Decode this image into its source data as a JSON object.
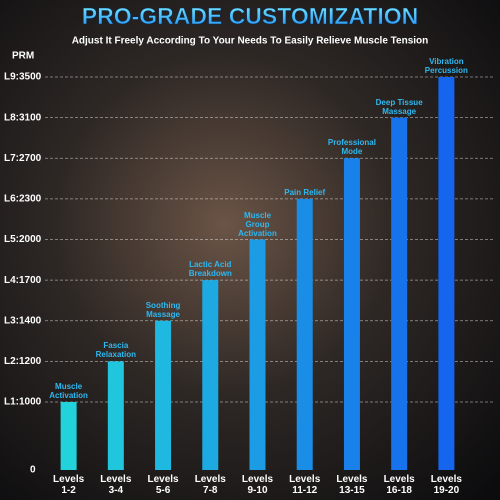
{
  "chart_data": {
    "type": "bar",
    "title": "PRO-GRADE CUSTOMIZATION",
    "subtitle": "Adjust It Freely According To Your Needs To Easily Relieve Muscle Tension",
    "y_label": "PRM",
    "categories": [
      "Levels 1-2",
      "Levels 3-4",
      "Levels 5-6",
      "Levels 7-8",
      "Levels 9-10",
      "Levels 11-12",
      "Levels 13-15",
      "Levels 16-18",
      "Levels 19-20"
    ],
    "values": [
      1000,
      1200,
      1400,
      1700,
      2000,
      2300,
      2700,
      3100,
      3500
    ],
    "annotations": [
      "Muscle Activation",
      "Fascia Relaxation",
      "Soothing Massage",
      "Lactic Acid Breakdown",
      "Muscle Group Activation",
      "Pain Relief",
      "Professional Mode",
      "Deep Tissue Massage",
      "Vibration Percussion"
    ],
    "color_low": "#22d3dc",
    "color_high": "#1565ee",
    "ylim": [
      0,
      3500
    ],
    "yticks": [
      0,
      {
        "value": 1000,
        "label": "L1:1000"
      },
      {
        "value": 1200,
        "label": "L2:1200"
      },
      {
        "value": 1400,
        "label": "L3:1400"
      },
      {
        "value": 1700,
        "label": "L4:1700"
      },
      {
        "value": 2000,
        "label": "L5:2000"
      },
      {
        "value": 2300,
        "label": "L6:2300"
      },
      {
        "value": 2700,
        "label": "L7:2700"
      },
      {
        "value": 3100,
        "label": "L8:3100"
      },
      {
        "value": 3500,
        "label": "L9:3500"
      }
    ],
    "grid": true
  }
}
